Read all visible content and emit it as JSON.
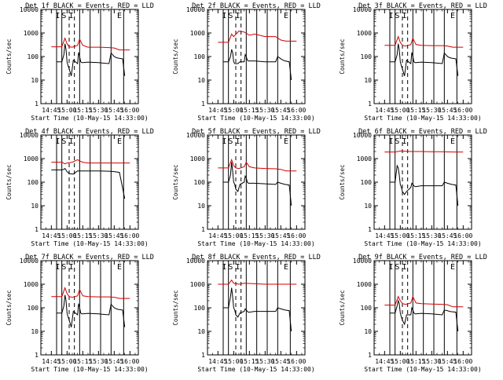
{
  "chart_data": [
    {
      "type": "line",
      "title": "Det 1f BLACK = Events, RED = LLD",
      "markers": [
        "I",
        "S",
        "I",
        "E"
      ],
      "xlabel": "Start Time (10-May-15 14:33:00)",
      "ylabel": "Counts/sec",
      "yscale": "log",
      "ylim": [
        1,
        10000
      ],
      "yticks": [
        "1",
        "10",
        "100",
        "1000",
        "10000"
      ],
      "xticks": [
        "14:45",
        "15:00",
        "15:15",
        "15:30",
        "15:45",
        "16:00"
      ],
      "series": [
        {
          "color": "#000000",
          "x": [
            "14:50",
            "14:55",
            "14:57",
            "14:58",
            "14:59",
            "15:00",
            "15:01",
            "15:02",
            "15:04",
            "15:06",
            "15:10",
            "15:11",
            "15:12",
            "15:13",
            "15:14",
            "15:15",
            "15:20",
            "15:30",
            "15:40",
            "15:42",
            "15:45",
            "15:47",
            "15:49",
            "15:53",
            "15:55"
          ],
          "values": [
            60,
            60,
            120,
            350,
            200,
            60,
            40,
            30,
            15,
            70,
            50,
            150,
            100,
            60,
            55,
            55,
            58,
            55,
            50,
            140,
            100,
            90,
            85,
            80,
            15
          ]
        },
        {
          "color": "#d40000",
          "x": [
            "14:45",
            "14:55",
            "14:58",
            "15:00",
            "15:02",
            "15:05",
            "15:10",
            "15:12",
            "15:15",
            "15:20",
            "15:30",
            "15:40",
            "15:45",
            "15:50",
            "16:00"
          ],
          "values": [
            260,
            260,
            600,
            350,
            260,
            250,
            300,
            550,
            300,
            250,
            250,
            240,
            230,
            190,
            190
          ]
        }
      ]
    },
    {
      "type": "line",
      "title": "Det 2f BLACK = Events, RED = LLD",
      "markers": [
        "I",
        "S",
        "I",
        "E"
      ],
      "xlabel": "Start Time (10-May-15 14:33:00)",
      "ylabel": "Counts/sec",
      "yscale": "log",
      "ylim": [
        1,
        10000
      ],
      "yticks": [
        "1",
        "10",
        "100",
        "1000",
        "10000"
      ],
      "xticks": [
        "14:45",
        "15:00",
        "15:15",
        "15:30",
        "15:45",
        "16:00"
      ],
      "series": [
        {
          "color": "#000000",
          "x": [
            "14:50",
            "14:55",
            "14:57",
            "14:58",
            "14:59",
            "15:00",
            "15:01",
            "15:02",
            "15:04",
            "15:06",
            "15:10",
            "15:11",
            "15:12",
            "15:13",
            "15:14",
            "15:15",
            "15:20",
            "15:30",
            "15:40",
            "15:42",
            "15:45",
            "15:47",
            "15:49",
            "15:53",
            "15:55"
          ],
          "values": [
            60,
            60,
            100,
            200,
            150,
            60,
            50,
            50,
            50,
            60,
            60,
            120,
            100,
            70,
            65,
            65,
            65,
            60,
            60,
            100,
            80,
            70,
            65,
            60,
            10
          ]
        },
        {
          "color": "#d40000",
          "x": [
            "14:45",
            "14:55",
            "14:58",
            "15:00",
            "15:05",
            "15:10",
            "15:15",
            "15:20",
            "15:30",
            "15:40",
            "15:45",
            "15:50",
            "16:00"
          ],
          "values": [
            400,
            400,
            900,
            700,
            1200,
            1100,
            800,
            900,
            700,
            700,
            500,
            450,
            450
          ]
        }
      ]
    },
    {
      "type": "line",
      "title": "Det 3f BLACK = Events, RED = LLD",
      "markers": [
        "I",
        "S",
        "I",
        "E"
      ],
      "xlabel": "Start Time (10-May-15 14:33:00)",
      "ylabel": "Counts/sec",
      "yscale": "log",
      "ylim": [
        1,
        10000
      ],
      "yticks": [
        "1",
        "10",
        "100",
        "1000",
        "10000"
      ],
      "xticks": [
        "14:45",
        "15:00",
        "15:15",
        "15:30",
        "15:45",
        "16:00"
      ],
      "series": [
        {
          "color": "#000000",
          "x": [
            "14:50",
            "14:55",
            "14:57",
            "14:58",
            "14:59",
            "15:00",
            "15:01",
            "15:02",
            "15:04",
            "15:06",
            "15:10",
            "15:11",
            "15:12",
            "15:13",
            "15:14",
            "15:15",
            "15:20",
            "15:30",
            "15:40",
            "15:42",
            "15:45",
            "15:47",
            "15:49",
            "15:53",
            "15:55"
          ],
          "values": [
            60,
            60,
            120,
            350,
            200,
            60,
            40,
            30,
            15,
            70,
            50,
            150,
            100,
            60,
            55,
            55,
            58,
            55,
            50,
            140,
            100,
            90,
            85,
            80,
            15
          ]
        },
        {
          "color": "#d40000",
          "x": [
            "14:45",
            "14:55",
            "14:58",
            "15:00",
            "15:02",
            "15:05",
            "15:10",
            "15:12",
            "15:15",
            "15:20",
            "15:30",
            "15:40",
            "15:45",
            "15:50",
            "16:00"
          ],
          "values": [
            300,
            300,
            700,
            400,
            300,
            280,
            320,
            600,
            320,
            300,
            290,
            290,
            280,
            250,
            250
          ]
        }
      ]
    },
    {
      "type": "line",
      "title": "Det 4f BLACK = Events, RED = LLD",
      "markers": [
        "I",
        "S",
        "I",
        "E"
      ],
      "xlabel": "Start Time (10-May-15 14:33:00)",
      "ylabel": "Counts/sec",
      "yscale": "log",
      "ylim": [
        1,
        10000
      ],
      "yticks": [
        "1",
        "10",
        "100",
        "1000",
        "10000"
      ],
      "xticks": [
        "14:45",
        "15:00",
        "15:15",
        "15:30",
        "15:45",
        "16:00"
      ],
      "series": [
        {
          "color": "#000000",
          "x": [
            "14:45",
            "14:55",
            "14:57",
            "14:58",
            "15:00",
            "15:02",
            "15:06",
            "15:10",
            "15:12",
            "15:15",
            "15:20",
            "15:30",
            "15:40",
            "15:45",
            "15:50",
            "15:55"
          ],
          "values": [
            330,
            330,
            350,
            380,
            280,
            230,
            220,
            300,
            300,
            300,
            300,
            300,
            290,
            280,
            260,
            20
          ]
        },
        {
          "color": "#d40000",
          "x": [
            "14:45",
            "14:55",
            "14:58",
            "15:00",
            "15:05",
            "15:10",
            "15:12",
            "15:15",
            "15:20",
            "15:30",
            "15:40",
            "15:50",
            "16:00"
          ],
          "values": [
            700,
            700,
            600,
            650,
            700,
            900,
            800,
            700,
            650,
            650,
            650,
            650,
            650
          ]
        }
      ]
    },
    {
      "type": "line",
      "title": "Det 5f BLACK = Events, RED = LLD",
      "markers": [
        "I",
        "S",
        "I",
        "E"
      ],
      "xlabel": "Start Time (10-May-15 14:33:00)",
      "ylabel": "Counts/sec",
      "yscale": "log",
      "ylim": [
        1,
        10000
      ],
      "yticks": [
        "1",
        "10",
        "100",
        "1000",
        "10000"
      ],
      "xticks": [
        "14:45",
        "15:00",
        "15:15",
        "15:30",
        "15:45",
        "16:00"
      ],
      "series": [
        {
          "color": "#000000",
          "x": [
            "14:50",
            "14:55",
            "14:57",
            "14:58",
            "14:59",
            "15:00",
            "15:01",
            "15:02",
            "15:04",
            "15:06",
            "15:10",
            "15:11",
            "15:12",
            "15:13",
            "15:14",
            "15:15",
            "15:20",
            "15:30",
            "15:40",
            "15:42",
            "15:45",
            "15:47",
            "15:49",
            "15:53",
            "15:55"
          ],
          "values": [
            100,
            100,
            200,
            700,
            300,
            100,
            80,
            50,
            40,
            80,
            100,
            180,
            150,
            100,
            90,
            90,
            90,
            85,
            80,
            100,
            90,
            85,
            80,
            75,
            10
          ]
        },
        {
          "color": "#d40000",
          "x": [
            "14:45",
            "14:55",
            "14:58",
            "15:00",
            "15:02",
            "15:05",
            "15:10",
            "15:12",
            "15:15",
            "15:20",
            "15:30",
            "15:40",
            "15:45",
            "15:50",
            "16:00"
          ],
          "values": [
            400,
            400,
            900,
            500,
            400,
            380,
            450,
            700,
            450,
            400,
            380,
            370,
            350,
            300,
            300
          ]
        }
      ]
    },
    {
      "type": "line",
      "title": "Det 6f BLACK = Events, RED = LLD",
      "markers": [
        "I",
        "S",
        "I",
        "E"
      ],
      "xlabel": "Start Time (10-May-15 14:33:00)",
      "ylabel": "Counts/sec",
      "yscale": "log",
      "ylim": [
        1,
        10000
      ],
      "yticks": [
        "1",
        "10",
        "100",
        "1000",
        "10000"
      ],
      "xticks": [
        "14:45",
        "15:00",
        "15:15",
        "15:30",
        "15:45",
        "16:00"
      ],
      "series": [
        {
          "color": "#000000",
          "x": [
            "14:50",
            "14:55",
            "14:57",
            "14:58",
            "14:59",
            "15:00",
            "15:01",
            "15:02",
            "15:04",
            "15:06",
            "15:10",
            "15:11",
            "15:12",
            "15:13",
            "15:14",
            "15:15",
            "15:20",
            "15:30",
            "15:40",
            "15:42",
            "15:45",
            "15:47",
            "15:49",
            "15:53",
            "15:55"
          ],
          "values": [
            100,
            100,
            500,
            400,
            200,
            80,
            60,
            40,
            30,
            40,
            60,
            90,
            80,
            70,
            65,
            65,
            70,
            70,
            70,
            100,
            90,
            85,
            80,
            75,
            10
          ]
        },
        {
          "color": "#d40000",
          "x": [
            "14:45",
            "14:55",
            "15:00",
            "15:10",
            "15:20",
            "15:30",
            "15:40",
            "15:50",
            "16:00"
          ],
          "values": [
            1900,
            1900,
            2100,
            2000,
            2000,
            1950,
            1950,
            1900,
            1900
          ]
        }
      ]
    },
    {
      "type": "line",
      "title": "Det 7f BLACK = Events, RED = LLD",
      "markers": [
        "I",
        "S",
        "I",
        "E"
      ],
      "xlabel": "Start Time (10-May-15 14:33:00)",
      "ylabel": "Counts/sec",
      "yscale": "log",
      "ylim": [
        1,
        10000
      ],
      "yticks": [
        "1",
        "10",
        "100",
        "1000",
        "10000"
      ],
      "xticks": [
        "14:45",
        "15:00",
        "15:15",
        "15:30",
        "15:45",
        "16:00"
      ],
      "series": [
        {
          "color": "#000000",
          "x": [
            "14:50",
            "14:55",
            "14:57",
            "14:58",
            "14:59",
            "15:00",
            "15:01",
            "15:02",
            "15:04",
            "15:06",
            "15:10",
            "15:11",
            "15:12",
            "15:13",
            "15:14",
            "15:15",
            "15:20",
            "15:30",
            "15:40",
            "15:42",
            "15:45",
            "15:47",
            "15:49",
            "15:53",
            "15:55"
          ],
          "values": [
            60,
            60,
            120,
            350,
            200,
            60,
            40,
            30,
            15,
            70,
            50,
            150,
            100,
            60,
            55,
            55,
            58,
            55,
            50,
            140,
            100,
            90,
            85,
            80,
            15
          ]
        },
        {
          "color": "#d40000",
          "x": [
            "14:45",
            "14:55",
            "14:58",
            "15:00",
            "15:02",
            "15:05",
            "15:10",
            "15:12",
            "15:15",
            "15:20",
            "15:30",
            "15:40",
            "15:45",
            "15:50",
            "16:00"
          ],
          "values": [
            300,
            300,
            700,
            400,
            300,
            280,
            320,
            600,
            320,
            300,
            290,
            290,
            280,
            250,
            250
          ]
        }
      ]
    },
    {
      "type": "line",
      "title": "Det 8f BLACK = Events, RED = LLD",
      "markers": [
        "I",
        "S",
        "I",
        "E"
      ],
      "xlabel": "Start Time (10-May-15 14:33:00)",
      "ylabel": "Counts/sec",
      "yscale": "log",
      "ylim": [
        1,
        10000
      ],
      "yticks": [
        "1",
        "10",
        "100",
        "1000",
        "10000"
      ],
      "xticks": [
        "14:45",
        "15:00",
        "15:15",
        "15:30",
        "15:45",
        "16:00"
      ],
      "series": [
        {
          "color": "#000000",
          "x": [
            "14:50",
            "14:55",
            "14:57",
            "14:58",
            "14:59",
            "15:00",
            "15:01",
            "15:02",
            "15:04",
            "15:06",
            "15:10",
            "15:11",
            "15:12",
            "15:13",
            "15:14",
            "15:15",
            "15:20",
            "15:30",
            "15:40",
            "15:42",
            "15:45",
            "15:47",
            "15:49",
            "15:53",
            "15:55"
          ],
          "values": [
            100,
            100,
            300,
            700,
            300,
            100,
            80,
            50,
            40,
            60,
            70,
            90,
            80,
            70,
            65,
            65,
            70,
            70,
            70,
            100,
            90,
            85,
            80,
            75,
            10
          ]
        },
        {
          "color": "#d40000",
          "x": [
            "14:45",
            "14:55",
            "14:58",
            "15:00",
            "15:05",
            "15:10",
            "15:20",
            "15:30",
            "15:40",
            "15:50",
            "16:00"
          ],
          "values": [
            1000,
            1000,
            1500,
            1100,
            1000,
            1100,
            1050,
            1000,
            1000,
            1000,
            1000
          ]
        }
      ]
    },
    {
      "type": "line",
      "title": "Det 9f BLACK = Events, RED = LLD",
      "markers": [
        "I",
        "S",
        "I",
        "E"
      ],
      "xlabel": "Start Time (10-May-15 14:33:00)",
      "ylabel": "Counts/sec",
      "yscale": "log",
      "ylim": [
        1,
        10000
      ],
      "yticks": [
        "1",
        "10",
        "100",
        "1000",
        "10000"
      ],
      "xticks": [
        "14:45",
        "15:00",
        "15:15",
        "15:30",
        "15:45",
        "16:00"
      ],
      "series": [
        {
          "color": "#000000",
          "x": [
            "14:50",
            "14:55",
            "14:57",
            "14:58",
            "14:59",
            "15:00",
            "15:01",
            "15:02",
            "15:04",
            "15:06",
            "15:10",
            "15:11",
            "15:12",
            "15:13",
            "15:14",
            "15:15",
            "15:20",
            "15:30",
            "15:40",
            "15:42",
            "15:45",
            "15:47",
            "15:49",
            "15:53",
            "15:55"
          ],
          "values": [
            60,
            60,
            120,
            200,
            150,
            60,
            40,
            30,
            20,
            50,
            50,
            100,
            80,
            60,
            55,
            55,
            58,
            55,
            50,
            80,
            75,
            70,
            68,
            65,
            10
          ]
        },
        {
          "color": "#d40000",
          "x": [
            "14:45",
            "14:55",
            "14:58",
            "15:00",
            "15:02",
            "15:05",
            "15:10",
            "15:12",
            "15:15",
            "15:20",
            "15:30",
            "15:40",
            "15:45",
            "15:50",
            "16:00"
          ],
          "values": [
            130,
            130,
            300,
            200,
            150,
            140,
            160,
            300,
            160,
            150,
            145,
            140,
            135,
            110,
            110
          ]
        }
      ]
    }
  ],
  "colors": {
    "events": "#000000",
    "lld": "#d40000",
    "background": "#ffffff"
  }
}
